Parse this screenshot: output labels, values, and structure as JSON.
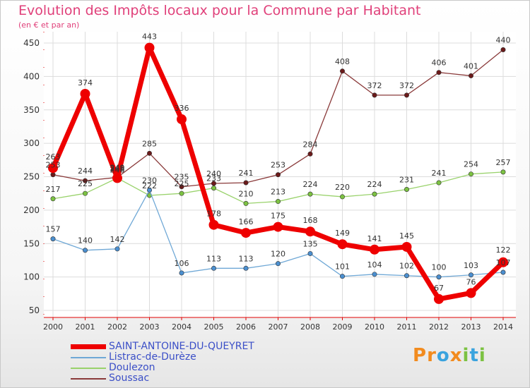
{
  "header": {
    "title": "Evolution des Impôts locaux pour la Commune par Habitant",
    "subtitle": "(en € et par an)"
  },
  "logo": {
    "text": "Proxiti",
    "letters": [
      "P",
      "r",
      "o",
      "x",
      "i",
      "t",
      "i"
    ],
    "colors": [
      "#f28b1e",
      "#f28b1e",
      "#3aa3de",
      "#f28b1e",
      "#7cc242",
      "#3aa3de",
      "#7cc242"
    ]
  },
  "chart_data": {
    "type": "line",
    "x": [
      "2000",
      "2001",
      "2002",
      "2003",
      "2004",
      "2005",
      "2006",
      "2007",
      "2008",
      "2009",
      "2010",
      "2011",
      "2012",
      "2013",
      "2014"
    ],
    "ylim": [
      50,
      450
    ],
    "yticks": [
      50,
      100,
      150,
      200,
      250,
      300,
      350,
      400,
      450
    ],
    "grid": true,
    "legend_position": "bottom-left",
    "series": [
      {
        "name": "SAINT-ANTOINE-DU-QUEYRET",
        "values": [
          263,
          374,
          248,
          443,
          336,
          178,
          166,
          175,
          168,
          149,
          141,
          145,
          67,
          76,
          122
        ],
        "color": "#ee0000",
        "line_width": 7,
        "marker_color": "#ee0000",
        "label_offsets": [
          [
            0,
            -12
          ],
          [
            0,
            -12
          ],
          [
            0,
            -8
          ],
          [
            0,
            -12
          ],
          [
            0,
            -12
          ],
          [
            0,
            -12
          ],
          [
            0,
            -12
          ],
          [
            0,
            -12
          ],
          [
            0,
            -12
          ],
          [
            0,
            -12
          ],
          [
            0,
            -12
          ],
          [
            0,
            -12
          ],
          [
            0,
            -12
          ],
          [
            0,
            -12
          ],
          [
            0,
            -14
          ]
        ]
      },
      {
        "name": "Listrac-de-Durèze",
        "values": [
          157,
          140,
          142,
          230,
          106,
          113,
          113,
          120,
          135,
          101,
          104,
          102,
          100,
          103,
          107
        ],
        "color": "#6fa8d6",
        "line_width": 1.3,
        "marker_color": "#4b8fd0",
        "label_offsets": [
          [
            0,
            -10
          ],
          [
            0,
            -10
          ],
          [
            0,
            -10
          ],
          [
            0,
            -10
          ],
          [
            0,
            -10
          ],
          [
            0,
            -10
          ],
          [
            0,
            -10
          ],
          [
            0,
            -10
          ],
          [
            0,
            -10
          ],
          [
            0,
            -10
          ],
          [
            0,
            -10
          ],
          [
            0,
            -10
          ],
          [
            0,
            -10
          ],
          [
            0,
            -10
          ],
          [
            0,
            -10
          ]
        ]
      },
      {
        "name": "Doulezon",
        "values": [
          217,
          225,
          248,
          222,
          225,
          233,
          210,
          213,
          224,
          220,
          224,
          231,
          241,
          254,
          257
        ],
        "color": "#99d26b",
        "line_width": 1.3,
        "marker_color": "#7cc242",
        "label_offsets": [
          [
            0,
            -10
          ],
          [
            0,
            -10
          ],
          [
            0,
            -10
          ],
          [
            0,
            -10
          ],
          [
            0,
            -10
          ],
          [
            0,
            -10
          ],
          [
            0,
            -10
          ],
          [
            0,
            -10
          ],
          [
            0,
            -10
          ],
          [
            0,
            -10
          ],
          [
            0,
            -10
          ],
          [
            0,
            -10
          ],
          [
            0,
            -10
          ],
          [
            0,
            -10
          ],
          [
            0,
            -10
          ]
        ]
      },
      {
        "name": "Soussac",
        "values": [
          253,
          244,
          249,
          285,
          235,
          240,
          241,
          253,
          284,
          408,
          372,
          372,
          406,
          401,
          440
        ],
        "color": "#8a3a3a",
        "line_width": 1.3,
        "marker_color": "#6b1a1a",
        "label_offsets": [
          [
            0,
            -10
          ],
          [
            0,
            -10
          ],
          [
            0,
            -10
          ],
          [
            0,
            -10
          ],
          [
            0,
            -10
          ],
          [
            0,
            -10
          ],
          [
            0,
            -10
          ],
          [
            0,
            -10
          ],
          [
            0,
            -10
          ],
          [
            0,
            -10
          ],
          [
            0,
            -10
          ],
          [
            0,
            -10
          ],
          [
            0,
            -10
          ],
          [
            0,
            -10
          ],
          [
            0,
            -10
          ]
        ]
      }
    ]
  }
}
